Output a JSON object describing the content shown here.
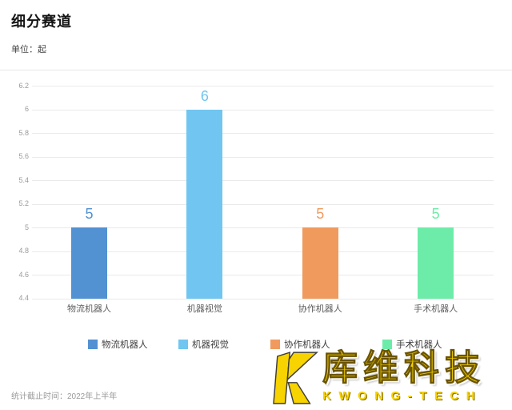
{
  "header": {
    "title": "细分赛道",
    "unit_label": "单位：起"
  },
  "footer": {
    "note": "统计截止时间：2022年上半年"
  },
  "logo": {
    "cn_name": "库维科技",
    "en_name": "KWONG-TECH",
    "brand_color": "#f6d301",
    "mark": "k-mark"
  },
  "chart_data": {
    "type": "bar",
    "title": "细分赛道",
    "unit": "起",
    "categories": [
      "物流机器人",
      "机器视觉",
      "协作机器人",
      "手术机器人"
    ],
    "values": [
      5,
      6,
      5,
      5
    ],
    "value_labels": [
      "5",
      "6",
      "5",
      "5"
    ],
    "bar_colors": [
      "#5291d2",
      "#70c6f0",
      "#f09a5e",
      "#6ceca8"
    ],
    "ylim": [
      4.4,
      6.2
    ],
    "ytick_step": 0.2,
    "yticks": [
      "6.2",
      "6",
      "5.8",
      "5.6",
      "5.4",
      "5.2",
      "5",
      "4.8",
      "4.6",
      "4.4"
    ],
    "grid": true,
    "legend": [
      "物流机器人",
      "机器视觉",
      "协作机器人",
      "手术机器人"
    ],
    "legend_position": "bottom",
    "xlabel": "",
    "ylabel": ""
  }
}
